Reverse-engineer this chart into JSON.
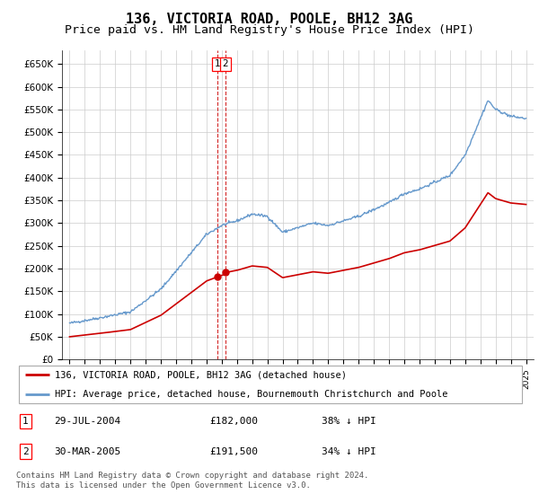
{
  "title": "136, VICTORIA ROAD, POOLE, BH12 3AG",
  "subtitle": "Price paid vs. HM Land Registry's House Price Index (HPI)",
  "ylabel_ticks": [
    "£0",
    "£50K",
    "£100K",
    "£150K",
    "£200K",
    "£250K",
    "£300K",
    "£350K",
    "£400K",
    "£450K",
    "£500K",
    "£550K",
    "£600K",
    "£650K"
  ],
  "ytick_values": [
    0,
    50000,
    100000,
    150000,
    200000,
    250000,
    300000,
    350000,
    400000,
    450000,
    500000,
    550000,
    600000,
    650000
  ],
  "ylim": [
    0,
    680000
  ],
  "xlim_left": 1994.5,
  "xlim_right": 2025.5,
  "sale1_year_f": 2004.72,
  "sale1_price": 182000,
  "sale1_date": "29-JUL-2004",
  "sale1_pct": "38% ↓ HPI",
  "sale2_year_f": 2005.25,
  "sale2_price": 191500,
  "sale2_date": "30-MAR-2005",
  "sale2_pct": "34% ↓ HPI",
  "legend_line1": "136, VICTORIA ROAD, POOLE, BH12 3AG (detached house)",
  "legend_line2": "HPI: Average price, detached house, Bournemouth Christchurch and Poole",
  "footer": "Contains HM Land Registry data © Crown copyright and database right 2024.\nThis data is licensed under the Open Government Licence v3.0.",
  "red_color": "#cc0000",
  "blue_color": "#6699cc",
  "background_color": "#ffffff",
  "grid_color": "#cccccc",
  "title_fontsize": 11,
  "subtitle_fontsize": 9.5
}
